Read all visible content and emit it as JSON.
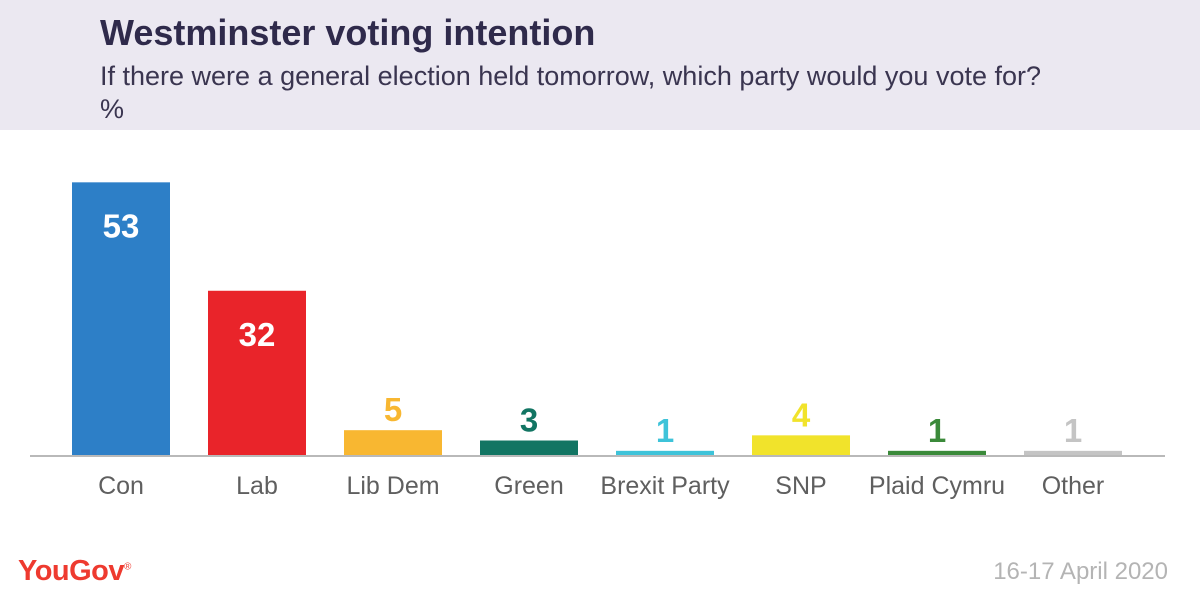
{
  "header": {
    "title": "Westminster voting intention",
    "subtitle": "If there were a general election held tomorrow, which party would you vote for? %"
  },
  "footer": {
    "brand": "YouGov",
    "date": "16-17 April 2020"
  },
  "chart_data": {
    "type": "bar",
    "categories": [
      "Con",
      "Lab",
      "Lib Dem",
      "Green",
      "Brexit Party",
      "SNP",
      "Plaid Cymru",
      "Other"
    ],
    "values": [
      53,
      32,
      5,
      3,
      1,
      4,
      1,
      1
    ],
    "colors": [
      "#2d7fc7",
      "#e9242a",
      "#f8b731",
      "#127563",
      "#3ec3d9",
      "#f1e32b",
      "#3b8a3a",
      "#c4c4c4"
    ],
    "value_label_colors": [
      "#ffffff",
      "#ffffff",
      "#f8b731",
      "#127563",
      "#3ec3d9",
      "#f1e32b",
      "#3b8a3a",
      "#c4c4c4"
    ],
    "ylim": [
      0,
      55
    ],
    "grid": false,
    "legend": "none"
  }
}
